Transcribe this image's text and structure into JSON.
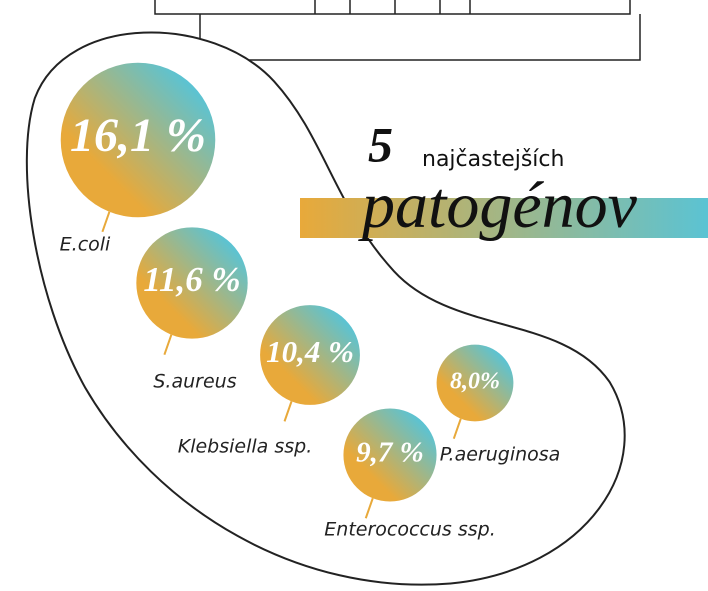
{
  "chart_data": {
    "type": "bubble",
    "title_parts": [
      "5",
      "najčastejších",
      "patogénov"
    ],
    "categories": [
      "E.coli",
      "S.aureus",
      "Klebsiella ssp.",
      "Enterococcus ssp.",
      "P.aeruginosa"
    ],
    "values": [
      16.1,
      11.6,
      10.4,
      9.7,
      8.0
    ],
    "value_labels": [
      "16,1 %",
      "11,6 %",
      "10,4 %",
      "9,7 %",
      "8,0%"
    ],
    "colors": [
      "#e8a93a",
      "#5bc3d3"
    ]
  }
}
